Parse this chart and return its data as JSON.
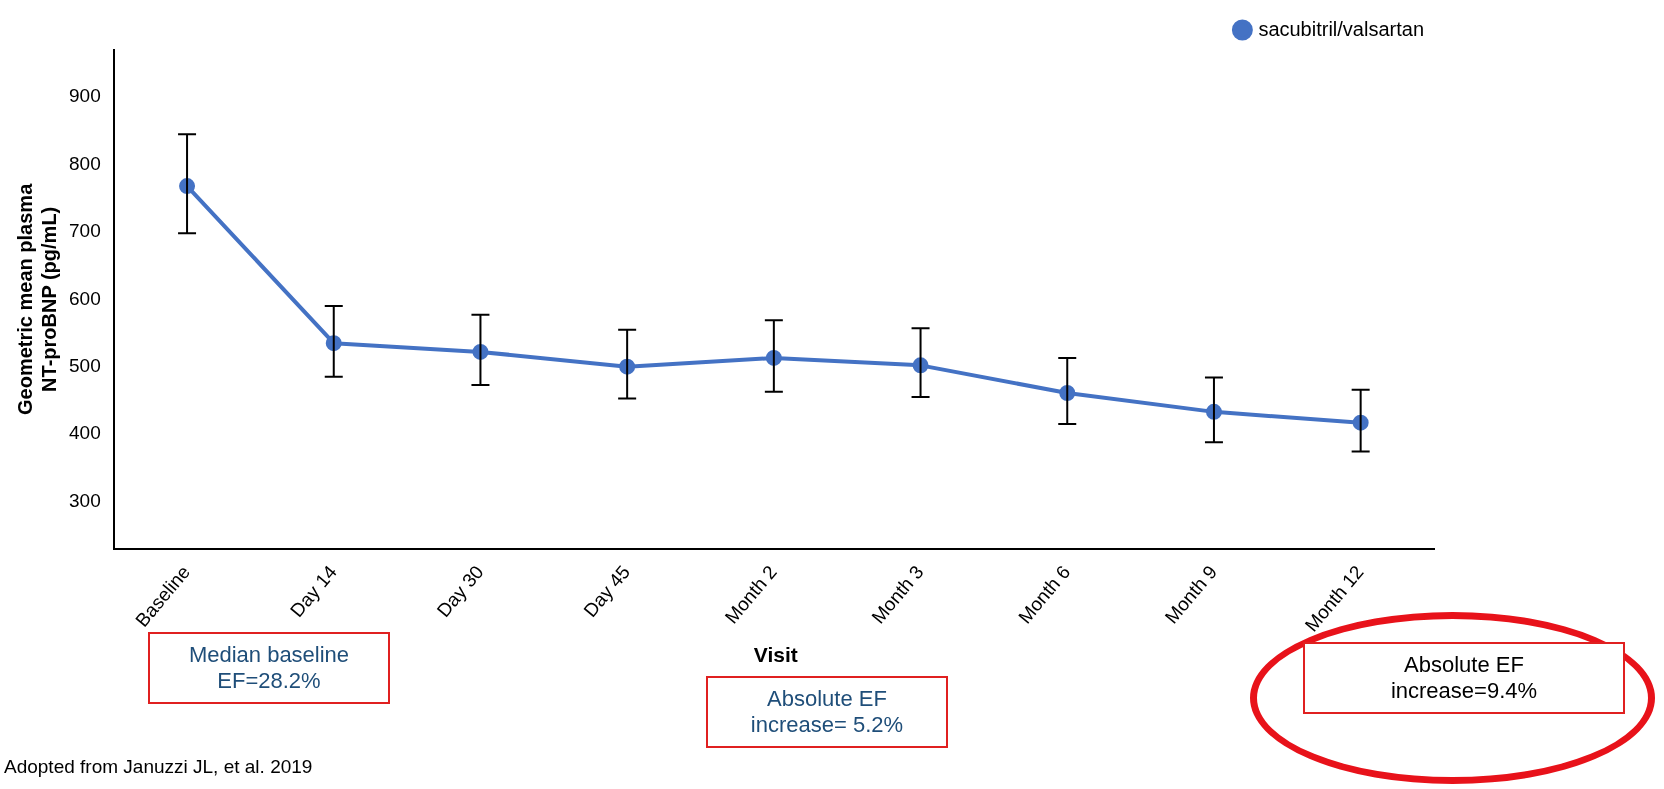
{
  "chart_data": {
    "type": "line",
    "xlabel": "Visit",
    "ylabel": "Geometric mean plasma\nNT-proBNP (pg/mL)",
    "categories": [
      "Baseline",
      "Day 14",
      "Day 30",
      "Day 45",
      "Month 2",
      "Month 3",
      "Month 6",
      "Month 9",
      "Month 12"
    ],
    "ylim": [
      230,
      970
    ],
    "yticks": [
      300,
      400,
      500,
      600,
      700,
      800,
      900
    ],
    "series": [
      {
        "name": "sacubitril/valsartan",
        "color": "#4472c4",
        "values": [
          768,
          535,
          522,
          500,
          513,
          502,
          461,
          433,
          417
        ],
        "errors": [
          [
            698,
            845
          ],
          [
            485,
            590
          ],
          [
            473,
            577
          ],
          [
            453,
            555
          ],
          [
            463,
            569
          ],
          [
            455,
            557
          ],
          [
            415,
            513
          ],
          [
            388,
            484
          ],
          [
            374,
            466
          ]
        ]
      }
    ],
    "marker": "circle",
    "legend": "top right",
    "grid": false,
    "annotations": [
      "Median baseline\nEF=28.2%",
      "Absolute EF\nincrease= 5.2%",
      "Absolute EF\nincrease=9.4%",
      "Adopted from Januzzi JL, et al. 2019"
    ]
  }
}
